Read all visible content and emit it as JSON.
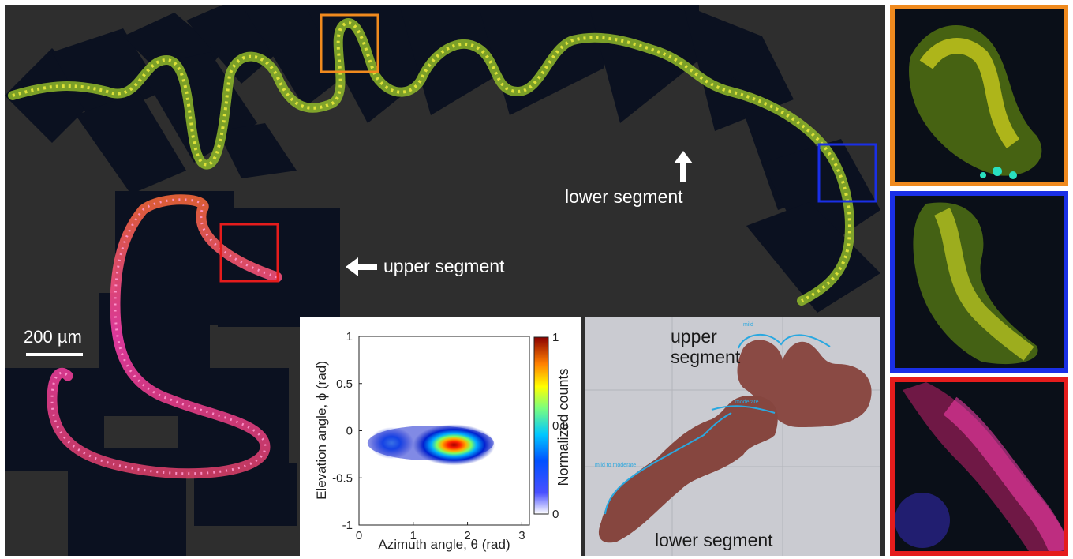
{
  "figure": {
    "labels": {
      "lower_segment": "lower segment",
      "upper_segment": "upper segment",
      "scale": "200 µm"
    },
    "roi_colors": {
      "orange": "#f08a1e",
      "blue": "#1a2fe6",
      "red": "#e51c1c"
    }
  },
  "chart_data": {
    "type": "heatmap",
    "xlabel": "Azimuth angle,  θ (rad)",
    "ylabel": "Elevation angle,  ϕ (rad)",
    "xlim": [
      0,
      3.14
    ],
    "ylim": [
      -1,
      1
    ],
    "x_ticks": [
      "0",
      "1",
      "2",
      "3"
    ],
    "y_ticks": [
      "1",
      "0.5",
      "0",
      "-0.5",
      "-1"
    ],
    "colorbar": {
      "label": "Normalized counts",
      "ticks": [
        "1",
        "0.5",
        "0"
      ],
      "range": [
        0,
        1
      ],
      "colormap": "jet"
    },
    "peak": {
      "theta": 1.75,
      "phi": -0.15,
      "value": 1.0
    },
    "secondary_peak": {
      "theta": 0.6,
      "phi": -0.13,
      "value": 0.45
    }
  },
  "histology": {
    "upper_label": "upper segment",
    "lower_label": "lower segment",
    "annotations": [
      "mild",
      "moderate",
      "mild to moderate"
    ]
  }
}
